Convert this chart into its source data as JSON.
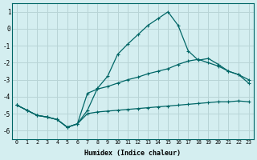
{
  "xlabel": "Humidex (Indice chaleur)",
  "background_color": "#d4eef0",
  "grid_color": "#c8dfe0",
  "line_color": "#006666",
  "xlim": [
    -0.5,
    23.5
  ],
  "ylim": [
    -6.5,
    1.5
  ],
  "yticks": [
    1,
    0,
    -1,
    -2,
    -3,
    -4,
    -5,
    -6
  ],
  "xticks": [
    0,
    1,
    2,
    3,
    4,
    5,
    6,
    7,
    8,
    9,
    10,
    11,
    12,
    13,
    14,
    15,
    16,
    17,
    18,
    19,
    20,
    21,
    22,
    23
  ],
  "line1_x": [
    0,
    1,
    2,
    3,
    4,
    5,
    6,
    7,
    8,
    9,
    10,
    11,
    12,
    13,
    14,
    15,
    16,
    17,
    18,
    19,
    20,
    21,
    22,
    23
  ],
  "line1_y": [
    -4.5,
    -4.8,
    -5.1,
    -5.2,
    -5.35,
    -5.8,
    -5.6,
    -5.0,
    -4.9,
    -4.85,
    -4.8,
    -4.75,
    -4.7,
    -4.65,
    -4.6,
    -4.55,
    -4.5,
    -4.45,
    -4.4,
    -4.35,
    -4.3,
    -4.3,
    -4.25,
    -4.3
  ],
  "line2_x": [
    0,
    1,
    2,
    3,
    4,
    5,
    6,
    7,
    8,
    9,
    10,
    11,
    12,
    13,
    14,
    15,
    16,
    17,
    18,
    19,
    20,
    21,
    22,
    23
  ],
  "line2_y": [
    -4.5,
    -4.8,
    -5.1,
    -5.2,
    -5.35,
    -5.8,
    -5.6,
    -3.8,
    -3.55,
    -3.4,
    -3.2,
    -3.0,
    -2.85,
    -2.65,
    -2.5,
    -2.35,
    -2.1,
    -1.9,
    -1.8,
    -2.0,
    -2.2,
    -2.5,
    -2.7,
    -3.0
  ],
  "line3_x": [
    0,
    1,
    2,
    3,
    4,
    5,
    6,
    7,
    8,
    9,
    10,
    11,
    12,
    13,
    14,
    15,
    16,
    17,
    18,
    19,
    20,
    21,
    22,
    23
  ],
  "line3_y": [
    -4.5,
    -4.8,
    -5.1,
    -5.2,
    -5.35,
    -5.8,
    -5.6,
    -4.8,
    -3.5,
    -2.8,
    -1.5,
    -0.9,
    -0.35,
    0.2,
    0.6,
    1.0,
    0.2,
    -1.3,
    -1.85,
    -1.75,
    -2.1,
    -2.5,
    -2.7,
    -3.2
  ]
}
